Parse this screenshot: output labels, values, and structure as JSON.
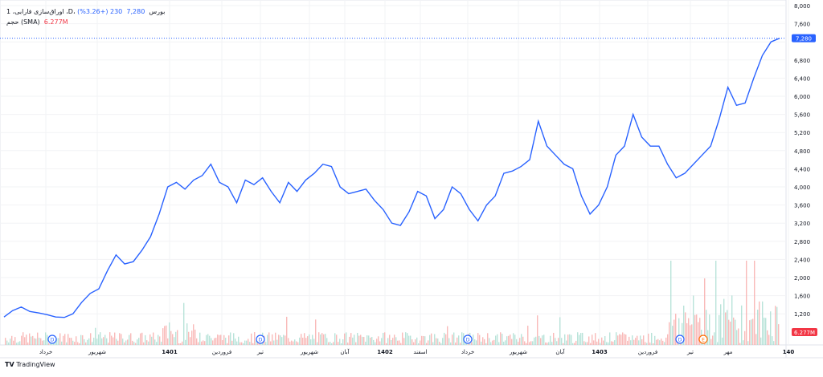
{
  "legend": {
    "symbol": "1 ،اوراق‌سازی فارابی ،D، بورس",
    "last": "7,280",
    "change": "230 (+3.26%)",
    "volume_label": "حجم (SMA)",
    "volume_value": "6.277M"
  },
  "brand": "TradingView",
  "colors": {
    "line": "#2962ff",
    "volume_up": "#a8dccf",
    "volume_down": "#f7a9a7",
    "event_dividend": "#2962ff",
    "event_earnings": "#ff6d00"
  },
  "chart_data": {
    "type": "line",
    "title": "",
    "xlabel": "",
    "ylabel": "",
    "ylim": [
      1000,
      8000
    ],
    "y_ticks": [
      "8,000",
      "7,600",
      "7,200",
      "6,800",
      "6,400",
      "6,000",
      "5,600",
      "5,200",
      "4,800",
      "4,400",
      "4,000",
      "3,600",
      "3,200",
      "2,800",
      "2,400",
      "2,000",
      "1,600",
      "1,200"
    ],
    "x_ticks": [
      "خرداد",
      "شهریور",
      "1401",
      "فروردین",
      "تیر",
      "شهریور",
      "آبان",
      "1402",
      "اسفند",
      "خرداد",
      "شهریور",
      "آبان",
      "1403",
      "فروردین",
      "تیر",
      "مهر",
      "140"
    ],
    "last_price_label": "7,280",
    "volume_label": "6.277M",
    "events": [
      "D",
      "D",
      "D",
      "D",
      "E"
    ],
    "grid": true,
    "series": [
      {
        "values": [
          1130,
          1270,
          1350,
          1250,
          1220,
          1180,
          1130,
          1120,
          1200,
          1450,
          1650,
          1750,
          2150,
          2500,
          2300,
          2350,
          2600,
          2900,
          3400,
          4000,
          4100,
          3950,
          4150,
          4250,
          4500,
          4100,
          4000,
          3650,
          4150,
          4050,
          4200,
          3900,
          3650,
          4100,
          3900,
          4150,
          4300,
          4500,
          4450,
          4000,
          3850,
          3900,
          3950,
          3700,
          3500,
          3200,
          3150,
          3450,
          3900,
          3800,
          3300,
          3500,
          4000,
          3850,
          3500,
          3250,
          3600,
          3800,
          4300,
          4350,
          4450,
          4600,
          5450,
          4900,
          4700,
          4500,
          4400,
          3800,
          3400,
          3600,
          4000,
          4700,
          4900,
          5600,
          5100,
          4900,
          4900,
          4500,
          4200,
          4300,
          4500,
          4700,
          4900,
          5500,
          6200,
          5800,
          5850,
          6400,
          6900,
          7200,
          7280
        ]
      }
    ]
  }
}
